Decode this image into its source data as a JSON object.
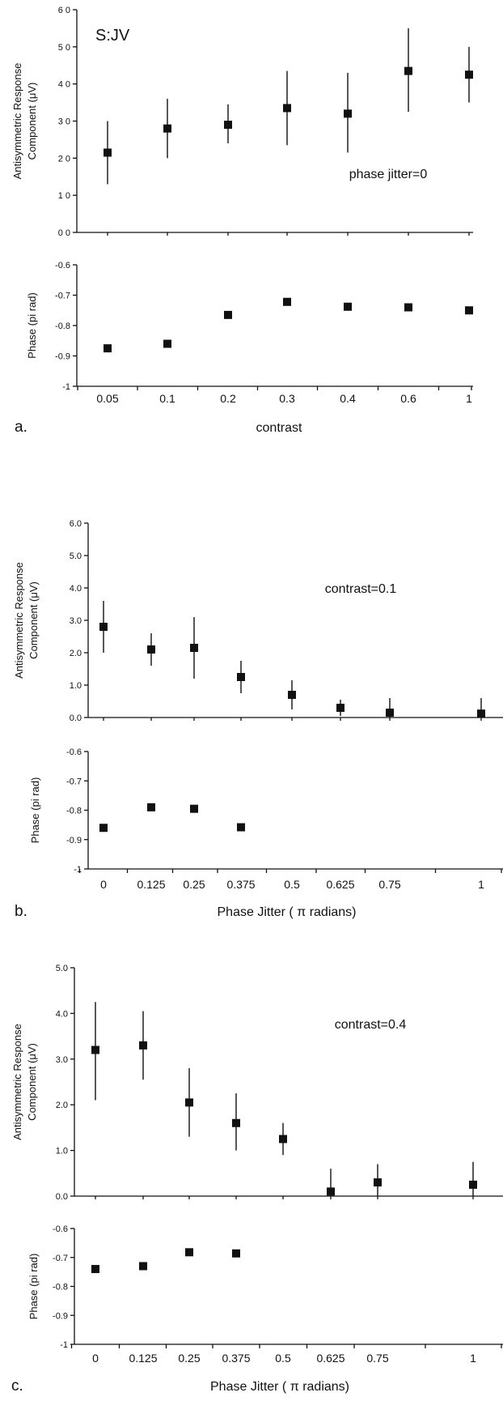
{
  "chart_data": [
    {
      "panel": "a.",
      "type": "scatter",
      "subject": "S:JV",
      "annotation": "phase jitter=0",
      "categories": [
        "0.05",
        "0.1",
        "0.2",
        "0.3",
        "0.4",
        "0.6",
        "1"
      ],
      "xlabel": "contrast",
      "amplitude": {
        "ylabel_line1": "Antisymmetric Response",
        "ylabel_line2": "Component (μV)",
        "ylim": [
          0,
          6
        ],
        "yticks": [
          "0 0",
          "1 0",
          "2 0",
          "3 0",
          "4 0",
          "5 0",
          "6 0"
        ],
        "values": [
          2.15,
          2.8,
          2.9,
          3.35,
          3.2,
          4.35,
          4.25
        ],
        "err_low": [
          1.3,
          2.0,
          2.4,
          2.35,
          2.15,
          3.25,
          3.5
        ],
        "err_high": [
          3.0,
          3.6,
          3.45,
          4.35,
          4.3,
          5.5,
          5.0
        ]
      },
      "phase": {
        "ylabel": "Phase (pi rad)",
        "ylim": [
          -1,
          -0.6
        ],
        "yticks": [
          "-1",
          "-0.9",
          "-0.8",
          "-0.7",
          "-0.6"
        ],
        "values": [
          -0.875,
          -0.86,
          -0.765,
          -0.722,
          -0.738,
          -0.74,
          -0.75
        ]
      }
    },
    {
      "panel": "b.",
      "type": "scatter",
      "annotation": "contrast=0.1",
      "xlabel": "Phase Jitter ( π radians)",
      "xticks": [
        "0",
        "0.125",
        "0.25",
        "0.375",
        "0.5",
        "0.625",
        "0.75",
        "1"
      ],
      "amplitude": {
        "ylabel_line1": "Antisymmetric Response",
        "ylabel_line2": "Component (μV)",
        "ylim": [
          0,
          6
        ],
        "yticks": [
          "0.0",
          "1.0",
          "2.0",
          "3.0",
          "4.0",
          "5.0",
          "6.0"
        ],
        "values": [
          2.8,
          2.1,
          2.15,
          1.25,
          0.7,
          0.3,
          0.15,
          0.12
        ],
        "err_low": [
          2.0,
          1.6,
          1.2,
          0.75,
          0.25,
          0.05,
          0.0,
          0.0
        ],
        "err_high": [
          3.6,
          2.6,
          3.1,
          1.75,
          1.15,
          0.55,
          0.6,
          0.6
        ]
      },
      "phase": {
        "ylabel": "Phase (pi rad)",
        "ylim": [
          -1,
          -0.6
        ],
        "yticks": [
          "-1",
          "-0.9",
          "-0.8",
          "-0.7",
          "-0.6"
        ],
        "values": [
          -0.86,
          -0.79,
          -0.795,
          -0.858
        ]
      }
    },
    {
      "panel": "c.",
      "type": "scatter",
      "annotation": "contrast=0.4",
      "xlabel": "Phase Jitter ( π radians)",
      "xticks": [
        "0",
        "0.125",
        "0.25",
        "0.375",
        "0.5",
        "0.625",
        "0.75",
        "1"
      ],
      "amplitude": {
        "ylabel_line1": "Antisymmetric Response",
        "ylabel_line2": "Component (μV)",
        "ylim": [
          0,
          5
        ],
        "yticks": [
          "0.0",
          "1.0",
          "2.0",
          "3.0",
          "4.0",
          "5.0"
        ],
        "values": [
          3.2,
          3.3,
          2.05,
          1.6,
          1.25,
          0.1,
          0.3,
          0.25
        ],
        "err_low": [
          2.1,
          2.55,
          1.3,
          1.0,
          0.9,
          0.0,
          0.0,
          0.0
        ],
        "err_high": [
          4.25,
          4.05,
          2.8,
          2.25,
          1.6,
          0.6,
          0.7,
          0.75
        ]
      },
      "phase": {
        "ylabel": "Phase (pi rad)",
        "ylim": [
          -1,
          -0.6
        ],
        "yticks": [
          "-1",
          "-0.9",
          "-0.8",
          "-0.7",
          "-0.6"
        ],
        "values": [
          -0.74,
          -0.73,
          -0.682,
          -0.686
        ]
      }
    }
  ]
}
